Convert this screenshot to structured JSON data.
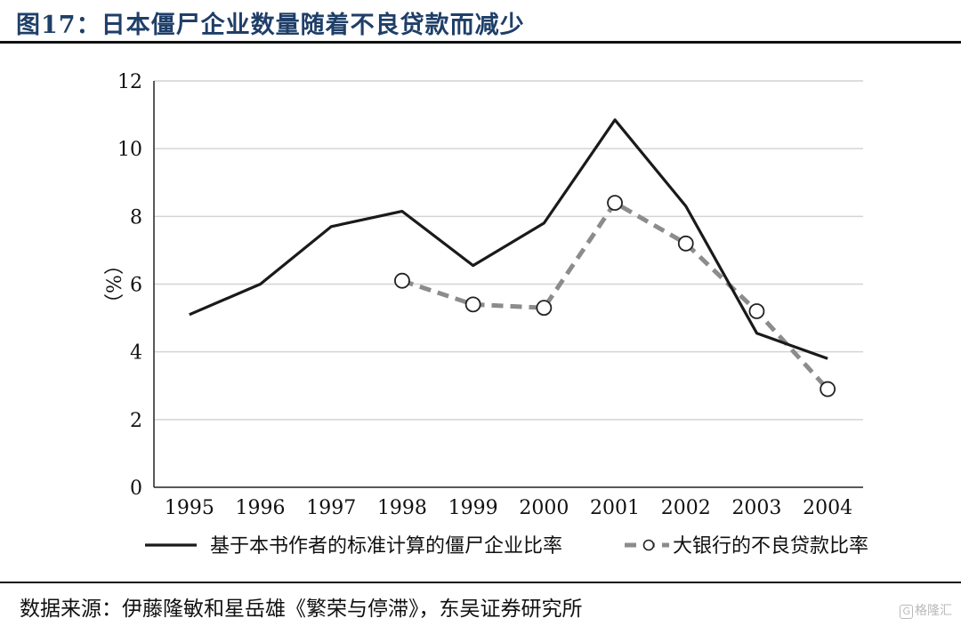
{
  "figure": {
    "title": "图17：日本僵尸企业数量随着不良贷款而减少"
  },
  "source": "数据来源：伊藤隆敏和星岳雄《繁荣与停滞》，东吴证券研究所",
  "watermark": {
    "logo": "G",
    "text": "格隆汇"
  },
  "colors": {
    "title": "#1f3f68",
    "series_solid": "#1a1a1a",
    "series_dashed": "#8c8c8c",
    "grid": "#d4d4d4"
  },
  "chart_data": {
    "type": "line",
    "title": "",
    "xlabel": "",
    "ylabel": "（%）",
    "x": [
      "1995",
      "1996",
      "1997",
      "1998",
      "1999",
      "2000",
      "2001",
      "2002",
      "2003",
      "2004"
    ],
    "ylim": [
      0,
      12
    ],
    "yticks": [
      "0",
      "2",
      "4",
      "6",
      "8",
      "10",
      "12"
    ],
    "grid": "horizontal",
    "legend_position": "bottom",
    "series": [
      {
        "name": "基于本书作者的标准计算的僵尸企业比率",
        "style": "solid",
        "values": [
          5.1,
          6.0,
          7.7,
          8.15,
          6.55,
          7.8,
          10.85,
          8.3,
          4.55,
          3.8
        ]
      },
      {
        "name": "大银行的不良贷款比率",
        "style": "dashed-circle-markers",
        "values": [
          null,
          null,
          null,
          6.1,
          5.4,
          5.3,
          8.4,
          7.2,
          5.2,
          2.9
        ]
      }
    ]
  }
}
